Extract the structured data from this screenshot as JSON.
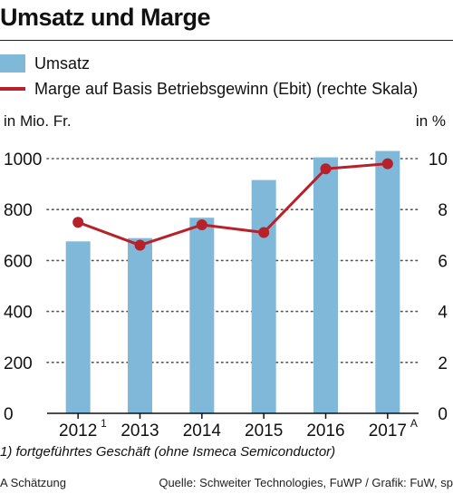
{
  "header": {
    "title": "Umsatz und Marge"
  },
  "legend": {
    "bar_label": "Umsatz",
    "line_label": "Marge auf Basis Betriebsgewinn (Ebit) (rechte Skala)"
  },
  "units": {
    "left": "in Mio. Fr.",
    "right": "in %"
  },
  "notes": {
    "footnote": "1) fortgeführtes Geschäft (ohne Ismeca Semiconductor)",
    "estimate": "A Schätzung",
    "source": "Quelle: Schweiter Technologies, FuWP / Grafik: FuW, sp"
  },
  "colors": {
    "bar": "#7fb8d8",
    "line": "#b8202a",
    "grid": "#555555"
  },
  "chart_data": {
    "type": "bar",
    "title": "Umsatz und Marge",
    "categories": [
      "2012",
      "2013",
      "2014",
      "2015",
      "2016",
      "2017"
    ],
    "category_superscripts": [
      "1",
      "",
      "",
      "",
      "",
      "A"
    ],
    "series": [
      {
        "name": "Umsatz",
        "type": "bar",
        "axis": "left",
        "values": [
          675,
          688,
          768,
          916,
          1005,
          1030
        ]
      },
      {
        "name": "Marge auf Basis Betriebsgewinn (Ebit) (rechte Skala)",
        "type": "line",
        "axis": "right",
        "values": [
          7.5,
          6.6,
          7.4,
          7.1,
          9.6,
          9.8
        ]
      }
    ],
    "y_left": {
      "range": [
        0,
        1000
      ],
      "ticks": [
        0,
        200,
        400,
        600,
        800,
        1000
      ],
      "label": "in Mio. Fr."
    },
    "y_right": {
      "range": [
        0,
        10
      ],
      "ticks": [
        0,
        2,
        4,
        6,
        8,
        10
      ],
      "label": "in %"
    },
    "grid": true,
    "legend_position": "top-left"
  }
}
